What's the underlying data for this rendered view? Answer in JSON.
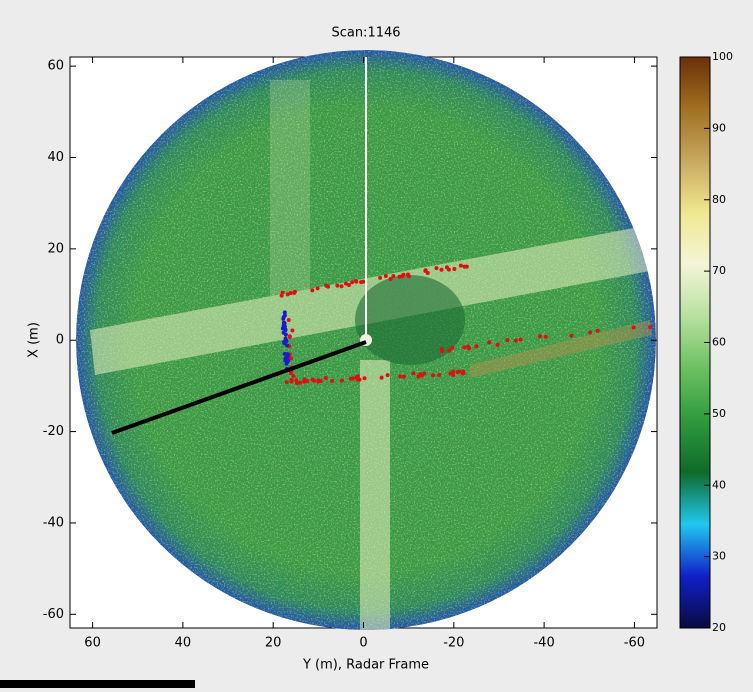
{
  "chart_data": {
    "type": "radar-image",
    "title": "Scan:1146",
    "xlabel": "Y (m), Radar Frame",
    "ylabel": "X (m)",
    "xlim": [
      65,
      -65
    ],
    "xticks": [
      60,
      40,
      20,
      0,
      -20,
      -40,
      -60
    ],
    "ylim": [
      -63,
      62
    ],
    "yticks": [
      -60,
      -40,
      -20,
      0,
      20,
      40,
      60
    ],
    "colorbar": {
      "lim": [
        20,
        100
      ],
      "ticks": [
        20,
        30,
        40,
        50,
        60,
        70,
        80,
        90,
        100
      ],
      "colormap": [
        "#0a0a40",
        "#1020c8",
        "#20c8f0",
        "#0f6a2a",
        "#2e9a3e",
        "#6cc060",
        "#b8e0a0",
        "#f4f4d8",
        "#f0e890",
        "#c8a860",
        "#a07020",
        "#6a3008"
      ]
    }
  }
}
